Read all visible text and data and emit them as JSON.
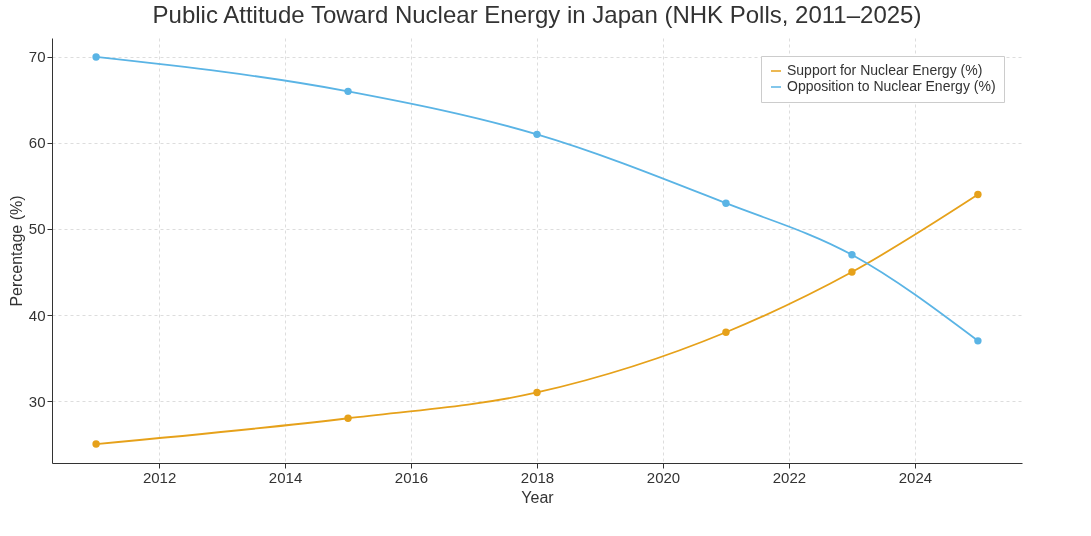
{
  "chart_data": {
    "type": "line",
    "title": "Public Attitude Toward Nuclear Energy in Japan (NHK Polls, 2011–2025)",
    "xlabel": "Year",
    "ylabel": "Percentage (%)",
    "x": [
      2011,
      2015,
      2018,
      2021,
      2023,
      2025
    ],
    "series": [
      {
        "name": "Support for Nuclear Energy (%)",
        "color": "#e6a11a",
        "values": [
          25,
          28,
          31,
          38,
          45,
          54
        ]
      },
      {
        "name": "Opposition to Nuclear Energy (%)",
        "color": "#5ab4e5",
        "values": [
          70,
          66,
          61,
          53,
          47,
          37
        ]
      }
    ],
    "xlim": [
      2010.3,
      2025.7
    ],
    "xticks": [
      2012,
      2014,
      2016,
      2018,
      2020,
      2022,
      2024
    ],
    "ylim": [
      22.8,
      72.2
    ],
    "yticks": [
      30,
      40,
      50,
      60,
      70
    ],
    "grid": true,
    "legend": "top right",
    "marker": "circle",
    "line_style": "solid"
  }
}
